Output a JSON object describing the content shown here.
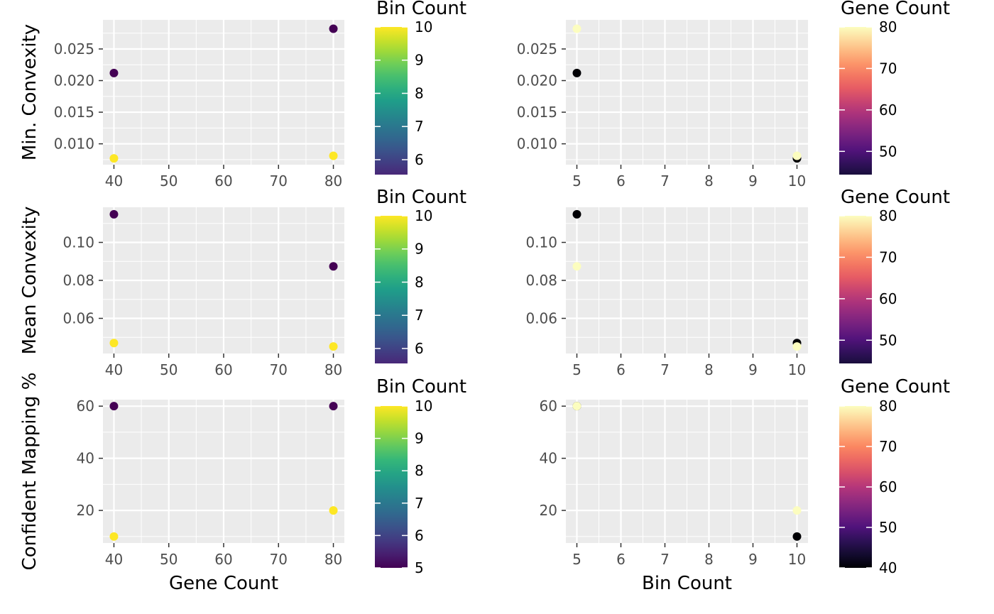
{
  "chart_data": [
    {
      "type": "scatter",
      "x_var": "Gene Count",
      "ylabel": "Min. Convexity",
      "xlabel": "",
      "xlim": [
        38,
        82
      ],
      "ylim": [
        0.0067,
        0.0296
      ],
      "x_ticks": [
        40,
        50,
        60,
        70,
        80
      ],
      "y_ticks": [
        0.01,
        0.015,
        0.02,
        0.025
      ],
      "y_tick_labels": [
        "0.010",
        "0.015",
        "0.020",
        "0.025"
      ],
      "grid": true,
      "color_by": "Bin Count",
      "colormap": "viridis",
      "legend": {
        "title": "Bin Count",
        "position": "right",
        "min": 5,
        "max": 10,
        "ticks": [
          6,
          7,
          8,
          9,
          10
        ],
        "tick_labels": [
          "6",
          "7",
          "8",
          "9",
          "10"
        ],
        "show_min": 5.55
      },
      "points": [
        {
          "x": 40,
          "y": 0.0212,
          "c": 5
        },
        {
          "x": 40,
          "y": 0.0077,
          "c": 10
        },
        {
          "x": 80,
          "y": 0.0282,
          "c": 5
        },
        {
          "x": 80,
          "y": 0.0081,
          "c": 10
        }
      ]
    },
    {
      "type": "scatter",
      "x_var": "Bin Count",
      "ylabel": "",
      "xlabel": "",
      "xlim": [
        4.75,
        10.25
      ],
      "ylim": [
        0.0067,
        0.0296
      ],
      "x_ticks": [
        5,
        6,
        7,
        8,
        9,
        10
      ],
      "y_ticks": [
        0.01,
        0.015,
        0.02,
        0.025
      ],
      "y_tick_labels": [
        "0.010",
        "0.015",
        "0.020",
        "0.025"
      ],
      "grid": true,
      "color_by": "Gene Count",
      "colormap": "magma",
      "legend": {
        "title": "Gene Count",
        "position": "right",
        "min": 40,
        "max": 80,
        "ticks": [
          50,
          60,
          70,
          80
        ],
        "tick_labels": [
          "50",
          "60",
          "70",
          "80"
        ],
        "show_min": 44.4
      },
      "points": [
        {
          "x": 5,
          "y": 0.0212,
          "c": 40
        },
        {
          "x": 5,
          "y": 0.0282,
          "c": 80
        },
        {
          "x": 10,
          "y": 0.0077,
          "c": 40
        },
        {
          "x": 10,
          "y": 0.0081,
          "c": 80
        }
      ]
    },
    {
      "type": "scatter",
      "x_var": "Gene Count",
      "ylabel": "Mean Convexity",
      "xlabel": "",
      "xlim": [
        38,
        82
      ],
      "ylim": [
        0.0415,
        0.1185
      ],
      "x_ticks": [
        40,
        50,
        60,
        70,
        80
      ],
      "y_ticks": [
        0.06,
        0.08,
        0.1
      ],
      "y_tick_labels": [
        "0.06",
        "0.08",
        "0.10"
      ],
      "grid": true,
      "color_by": "Bin Count",
      "colormap": "viridis",
      "legend": {
        "title": "Bin Count",
        "position": "right",
        "min": 5,
        "max": 10,
        "ticks": [
          6,
          7,
          8,
          9,
          10
        ],
        "tick_labels": [
          "6",
          "7",
          "8",
          "9",
          "10"
        ],
        "show_min": 5.55
      },
      "points": [
        {
          "x": 40,
          "y": 0.1148,
          "c": 5
        },
        {
          "x": 40,
          "y": 0.047,
          "c": 10
        },
        {
          "x": 80,
          "y": 0.0874,
          "c": 5
        },
        {
          "x": 80,
          "y": 0.0452,
          "c": 10
        }
      ]
    },
    {
      "type": "scatter",
      "x_var": "Bin Count",
      "ylabel": "",
      "xlabel": "",
      "xlim": [
        4.75,
        10.25
      ],
      "ylim": [
        0.0415,
        0.1185
      ],
      "x_ticks": [
        5,
        6,
        7,
        8,
        9,
        10
      ],
      "y_ticks": [
        0.06,
        0.08,
        0.1
      ],
      "y_tick_labels": [
        "0.06",
        "0.08",
        "0.10"
      ],
      "grid": true,
      "color_by": "Gene Count",
      "colormap": "magma",
      "legend": {
        "title": "Gene Count",
        "position": "right",
        "min": 40,
        "max": 80,
        "ticks": [
          50,
          60,
          70,
          80
        ],
        "tick_labels": [
          "50",
          "60",
          "70",
          "80"
        ],
        "show_min": 44.4
      },
      "points": [
        {
          "x": 5,
          "y": 0.1148,
          "c": 40
        },
        {
          "x": 5,
          "y": 0.0874,
          "c": 80
        },
        {
          "x": 10,
          "y": 0.047,
          "c": 40
        },
        {
          "x": 10,
          "y": 0.0452,
          "c": 80
        }
      ]
    },
    {
      "type": "scatter",
      "x_var": "Gene Count",
      "ylabel": "Confident Mapping %",
      "xlabel": "Gene Count",
      "xlim": [
        38,
        82
      ],
      "ylim": [
        7.5,
        62.5
      ],
      "x_ticks": [
        40,
        50,
        60,
        70,
        80
      ],
      "y_ticks": [
        20,
        40,
        60
      ],
      "y_tick_labels": [
        "20",
        "40",
        "60"
      ],
      "grid": true,
      "color_by": "Bin Count",
      "colormap": "viridis",
      "legend": {
        "title": "Bin Count",
        "position": "right",
        "min": 5,
        "max": 10,
        "ticks": [
          5,
          6,
          7,
          8,
          9,
          10
        ],
        "tick_labels": [
          "5",
          "6",
          "7",
          "8",
          "9",
          "10"
        ],
        "show_min": 5
      },
      "points": [
        {
          "x": 40,
          "y": 60,
          "c": 5
        },
        {
          "x": 40,
          "y": 10,
          "c": 10
        },
        {
          "x": 80,
          "y": 60,
          "c": 5
        },
        {
          "x": 80,
          "y": 20,
          "c": 10
        }
      ]
    },
    {
      "type": "scatter",
      "x_var": "Bin Count",
      "ylabel": "",
      "xlabel": "Bin Count",
      "xlim": [
        4.75,
        10.25
      ],
      "ylim": [
        7.5,
        62.5
      ],
      "x_ticks": [
        5,
        6,
        7,
        8,
        9,
        10
      ],
      "y_ticks": [
        20,
        40,
        60
      ],
      "y_tick_labels": [
        "20",
        "40",
        "60"
      ],
      "grid": true,
      "color_by": "Gene Count",
      "colormap": "magma",
      "legend": {
        "title": "Gene Count",
        "position": "right",
        "min": 40,
        "max": 80,
        "ticks": [
          40,
          50,
          60,
          70,
          80
        ],
        "tick_labels": [
          "40",
          "50",
          "60",
          "70",
          "80"
        ],
        "show_min": 40
      },
      "points": [
        {
          "x": 5,
          "y": 60,
          "c": 40
        },
        {
          "x": 5,
          "y": 60,
          "c": 80
        },
        {
          "x": 10,
          "y": 10,
          "c": 40
        },
        {
          "x": 10,
          "y": 20,
          "c": 80
        }
      ]
    }
  ],
  "colors": {
    "panel_bg": "#ebebeb",
    "grid_major": "#ffffff",
    "tick_text": "#4d4d4d",
    "viridis": [
      "#440154",
      "#482878",
      "#3e4a89",
      "#31688e",
      "#26828e",
      "#1f9e89",
      "#35b779",
      "#6ece58",
      "#b5de2b",
      "#fde725"
    ],
    "magma": [
      "#000004",
      "#1c1044",
      "#4f127b",
      "#812581",
      "#b5367a",
      "#e55964",
      "#fb8761",
      "#fec287",
      "#fcfdbf"
    ]
  }
}
